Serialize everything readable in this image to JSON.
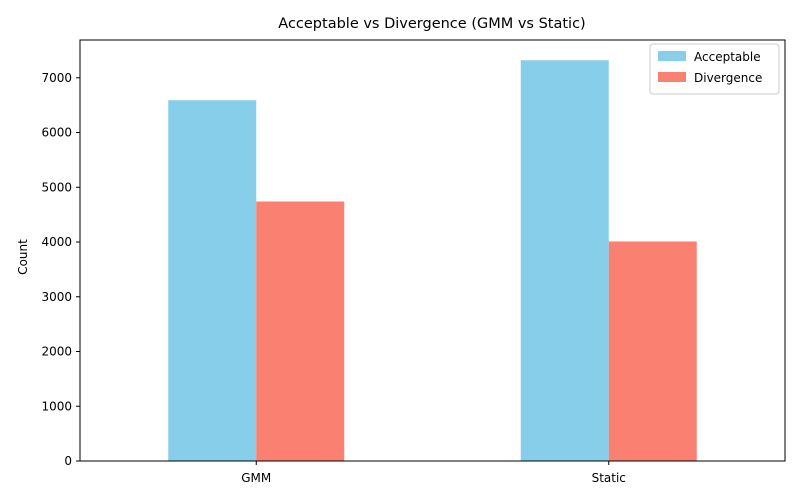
{
  "chart_data": {
    "type": "bar",
    "title": "Acceptable vs Divergence (GMM vs Static)",
    "xlabel": "",
    "ylabel": "Count",
    "categories": [
      "GMM",
      "Static"
    ],
    "series": [
      {
        "name": "Acceptable",
        "values": [
          6590,
          7320
        ],
        "color": "#87CEEB"
      },
      {
        "name": "Divergence",
        "values": [
          4740,
          4010
        ],
        "color": "#FA8072"
      }
    ],
    "ylim": [
      0,
      7690
    ],
    "yticks": [
      0,
      1000,
      2000,
      3000,
      4000,
      5000,
      6000,
      7000
    ],
    "legend": "top-right",
    "grid": false
  }
}
